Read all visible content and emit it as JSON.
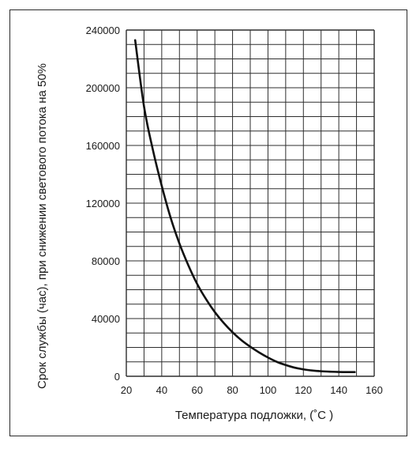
{
  "chart_data": {
    "type": "line",
    "title": "",
    "xlabel": "Температура подложки, (˚С )",
    "ylabel": "Срок службы (час), при снижении светового потока на 50%",
    "xlim": [
      20,
      160
    ],
    "ylim": [
      0,
      240000
    ],
    "x_ticks": [
      "20",
      "40",
      "60",
      "80",
      "100",
      "120",
      "140",
      "160"
    ],
    "y_ticks": [
      "0",
      "40000",
      "80000",
      "120000",
      "160000",
      "200000",
      "240000"
    ],
    "grid": true,
    "series": [
      {
        "x": [
          25,
          30,
          35,
          40,
          45,
          50,
          55,
          60,
          65,
          70,
          75,
          80,
          85,
          90,
          95,
          100,
          105,
          110,
          115,
          120,
          125,
          130,
          135,
          140,
          145,
          149
        ],
        "values": [
          233000,
          187000,
          157000,
          132000,
          110000,
          92000,
          77000,
          64000,
          53500,
          44500,
          37000,
          30500,
          25000,
          20500,
          16500,
          13000,
          10000,
          7800,
          6000,
          4800,
          4000,
          3500,
          3200,
          3000,
          2900,
          2900
        ]
      }
    ]
  }
}
